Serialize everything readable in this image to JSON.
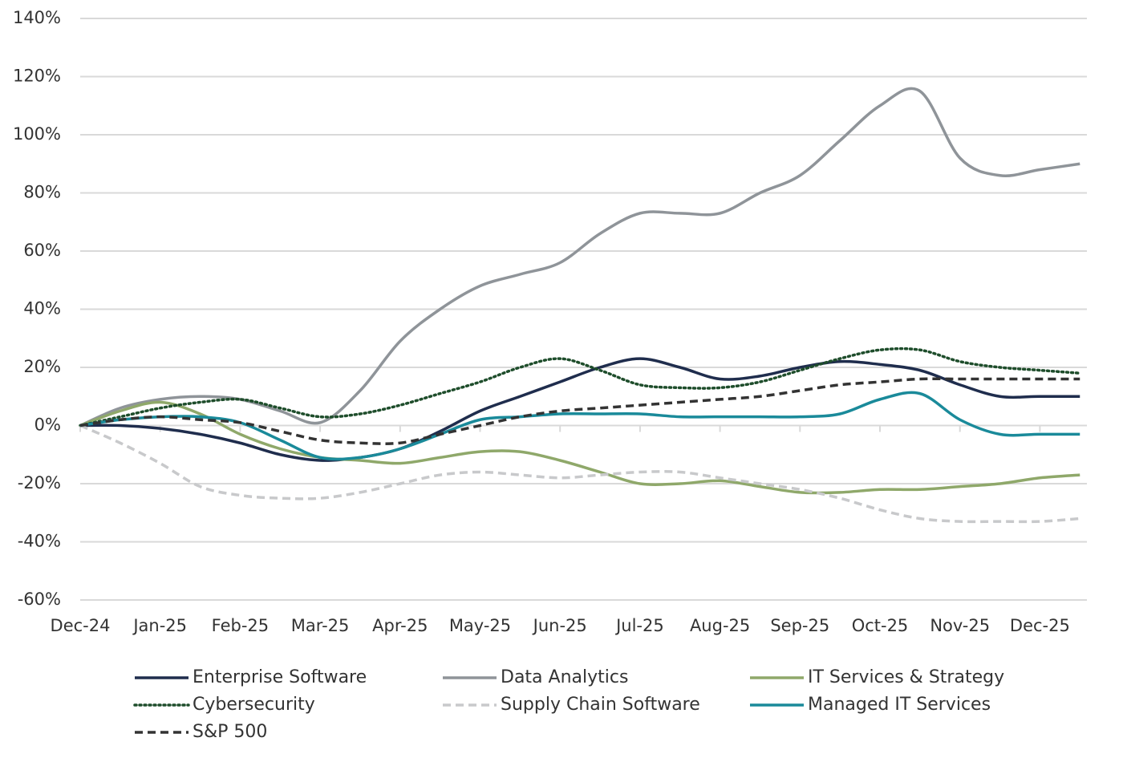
{
  "chart_data": {
    "type": "line",
    "categories": [
      "Dec-24",
      null,
      "Jan-25",
      null,
      "Feb-25",
      null,
      "Mar-25",
      null,
      "Apr-25",
      null,
      "May-25",
      null,
      "Jun-25",
      null,
      "Jul-25",
      null,
      "Aug-25",
      null,
      "Sep-25",
      null,
      "Oct-25",
      null,
      "Nov-25",
      null,
      "Dec-25",
      null
    ],
    "ylim": [
      -60,
      140
    ],
    "yticks": [
      {
        "value": 140,
        "label": "140%"
      },
      {
        "value": 120,
        "label": "120%"
      },
      {
        "value": 100,
        "label": "100%"
      },
      {
        "value": 80,
        "label": "80%"
      },
      {
        "value": 60,
        "label": "60%"
      },
      {
        "value": 40,
        "label": "40%"
      },
      {
        "value": 20,
        "label": "20%"
      },
      {
        "value": 0,
        "label": "0%"
      },
      {
        "value": -20,
        "label": "-20%"
      },
      {
        "value": -40,
        "label": "-40%"
      },
      {
        "value": -60,
        "label": "-60%"
      }
    ],
    "grid": true,
    "series": [
      {
        "name": "Enterprise Software",
        "color": "#1f2d4d",
        "dash": "solid",
        "values": [
          0,
          0,
          -1,
          -3,
          -6,
          -10,
          -12,
          -11,
          -8,
          -2,
          5,
          10,
          15,
          20,
          23,
          20,
          16,
          17,
          20,
          22,
          21,
          19,
          14,
          10,
          10,
          10
        ]
      },
      {
        "name": "Data Analytics",
        "color": "#8f9499",
        "dash": "solid",
        "values": [
          0,
          6,
          9,
          10,
          9,
          5,
          1,
          12,
          29,
          40,
          48,
          52,
          56,
          66,
          73,
          73,
          73,
          80,
          86,
          98,
          110,
          115,
          92,
          86,
          88,
          90
        ]
      },
      {
        "name": "IT Services & Strategy",
        "color": "#8fa86a",
        "dash": "solid",
        "values": [
          0,
          5,
          8,
          4,
          -3,
          -8,
          -11,
          -12,
          -13,
          -11,
          -9,
          -9,
          -12,
          -16,
          -20,
          -20,
          -19,
          -21,
          -23,
          -23,
          -22,
          -22,
          -21,
          -20,
          -18,
          -17
        ]
      },
      {
        "name": "Cybersecurity",
        "color": "#1e4d2b",
        "dash": "dotted",
        "values": [
          0,
          3,
          6,
          8,
          9,
          6,
          3,
          4,
          7,
          11,
          15,
          20,
          23,
          19,
          14,
          13,
          13,
          15,
          19,
          23,
          26,
          26,
          22,
          20,
          19,
          18
        ]
      },
      {
        "name": "Supply Chain Software",
        "color": "#c8c9cb",
        "dash": "dashed",
        "values": [
          0,
          -6,
          -13,
          -21,
          -24,
          -25,
          -25,
          -23,
          -20,
          -17,
          -16,
          -17,
          -18,
          -17,
          -16,
          -16,
          -18,
          -20,
          -22,
          -25,
          -29,
          -32,
          -33,
          -33,
          -33,
          -32
        ]
      },
      {
        "name": "Managed IT Services",
        "color": "#1a8a9a",
        "dash": "solid",
        "values": [
          0,
          2,
          3,
          3,
          1,
          -5,
          -11,
          -11,
          -8,
          -3,
          2,
          3,
          4,
          4,
          4,
          3,
          3,
          3,
          3,
          4,
          9,
          11,
          2,
          -3,
          -3,
          -3
        ]
      },
      {
        "name": "S&P 500",
        "color": "#333333",
        "dash": "dashed",
        "values": [
          0,
          2,
          3,
          2,
          1,
          -2,
          -5,
          -6,
          -6,
          -3,
          0,
          3,
          5,
          6,
          7,
          8,
          9,
          10,
          12,
          14,
          15,
          16,
          16,
          16,
          16,
          16
        ]
      }
    ]
  }
}
